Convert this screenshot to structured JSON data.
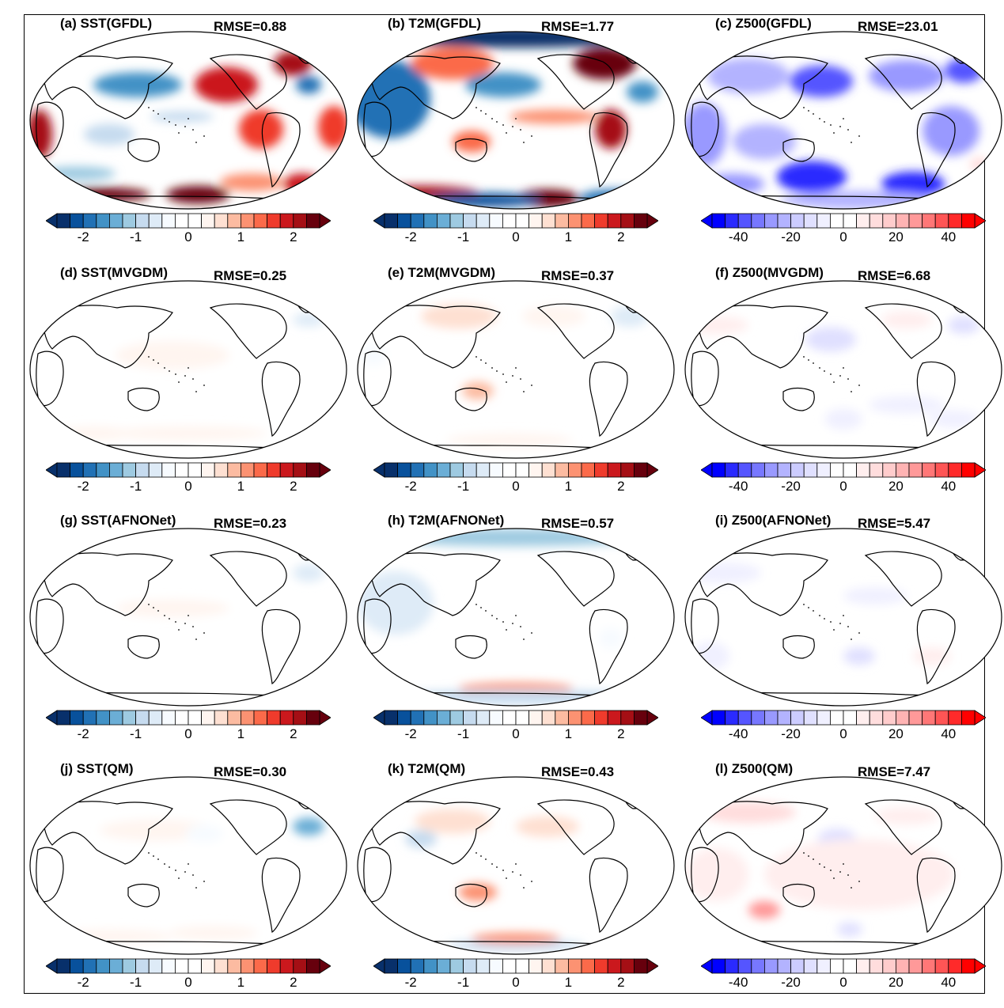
{
  "panels": [
    {
      "id": "a",
      "title": "(a) SST(GFDL)",
      "rmse": "RMSE=0.88",
      "variable": "SST",
      "scale": "div"
    },
    {
      "id": "b",
      "title": "(b) T2M(GFDL)",
      "rmse": "RMSE=1.77",
      "variable": "T2M",
      "scale": "div"
    },
    {
      "id": "c",
      "title": "(c) Z500(GFDL)",
      "rmse": "RMSE=23.01",
      "variable": "Z500",
      "scale": "bwr"
    },
    {
      "id": "d",
      "title": "(d) SST(MVGDM)",
      "rmse": "RMSE=0.25",
      "variable": "SST",
      "scale": "div"
    },
    {
      "id": "e",
      "title": "(e) T2M(MVGDM)",
      "rmse": "RMSE=0.37",
      "variable": "T2M",
      "scale": "div"
    },
    {
      "id": "f",
      "title": "(f) Z500(MVGDM)",
      "rmse": "RMSE=6.68",
      "variable": "Z500",
      "scale": "bwr"
    },
    {
      "id": "g",
      "title": "(g) SST(AFNONet)",
      "rmse": "RMSE=0.23",
      "variable": "SST",
      "scale": "div"
    },
    {
      "id": "h",
      "title": "(h) T2M(AFNONet)",
      "rmse": "RMSE=0.57",
      "variable": "T2M",
      "scale": "div"
    },
    {
      "id": "i",
      "title": "(i) Z500(AFNONet)",
      "rmse": "RMSE=5.47",
      "variable": "Z500",
      "scale": "bwr"
    },
    {
      "id": "j",
      "title": "(j) SST(QM)",
      "rmse": "RMSE=0.30",
      "variable": "SST",
      "scale": "div"
    },
    {
      "id": "k",
      "title": "(k) T2M(QM)",
      "rmse": "RMSE=0.43",
      "variable": "T2M",
      "scale": "div"
    },
    {
      "id": "l",
      "title": "(l) Z500(QM)",
      "rmse": "RMSE=7.47",
      "variable": "Z500",
      "scale": "bwr"
    }
  ],
  "colorbars": {
    "div": {
      "ticks": [
        "-2",
        "-1",
        "0",
        "1",
        "2"
      ],
      "colors": [
        "#08306b",
        "#08519c",
        "#2171b5",
        "#4292c6",
        "#6baed6",
        "#9ecae1",
        "#c6dbef",
        "#deebf7",
        "#f7fbff",
        "#ffffff",
        "#ffffff",
        "#fff5f0",
        "#fee0d2",
        "#fcbba1",
        "#fc9272",
        "#fb6a4a",
        "#ef3b2c",
        "#cb181d",
        "#a50f15",
        "#67000d"
      ]
    },
    "bwr": {
      "ticks": [
        "-40",
        "-20",
        "0",
        "20",
        "40"
      ],
      "colors": [
        "#0000ff",
        "#2a2aff",
        "#5555ff",
        "#7777ff",
        "#9999ff",
        "#b3b3ff",
        "#ccccff",
        "#e0e0ff",
        "#f0f0ff",
        "#ffffff",
        "#ffffff",
        "#ffeeee",
        "#ffdddd",
        "#ffcccc",
        "#ffb3b3",
        "#ff9999",
        "#ff7777",
        "#ff5555",
        "#ff2a2a",
        "#ff0000"
      ]
    }
  },
  "anomalies": {
    "a": [
      {
        "lon": 0.34,
        "lat": 0.3,
        "val": -1.6,
        "w": 0.14,
        "h": 0.07
      },
      {
        "lon": 0.62,
        "lat": 0.3,
        "val": 1.8,
        "w": 0.1,
        "h": 0.1
      },
      {
        "lon": 0.83,
        "lat": 0.18,
        "val": 2.2,
        "w": 0.06,
        "h": 0.07
      },
      {
        "lon": 0.88,
        "lat": 0.3,
        "val": -2.0,
        "w": 0.04,
        "h": 0.05
      },
      {
        "lon": 0.03,
        "lat": 0.58,
        "val": 2.2,
        "w": 0.04,
        "h": 0.14
      },
      {
        "lon": 0.73,
        "lat": 0.55,
        "val": 1.6,
        "w": 0.07,
        "h": 0.11
      },
      {
        "lon": 0.96,
        "lat": 0.54,
        "val": 1.6,
        "w": 0.05,
        "h": 0.12
      },
      {
        "lon": 0.15,
        "lat": 0.8,
        "val": -1.2,
        "w": 0.12,
        "h": 0.04
      },
      {
        "lon": 0.22,
        "lat": 0.92,
        "val": 2.3,
        "w": 0.16,
        "h": 0.04
      },
      {
        "lon": 0.53,
        "lat": 0.92,
        "val": 2.5,
        "w": 0.1,
        "h": 0.05
      },
      {
        "lon": 0.7,
        "lat": 0.85,
        "val": 1.2,
        "w": 0.1,
        "h": 0.05
      },
      {
        "lon": 0.86,
        "lat": 0.86,
        "val": 1.8,
        "w": 0.06,
        "h": 0.06
      },
      {
        "lon": 0.25,
        "lat": 0.58,
        "val": -1.0,
        "w": 0.08,
        "h": 0.06
      },
      {
        "lon": 0.48,
        "lat": 0.48,
        "val": -0.9,
        "w": 0.1,
        "h": 0.03
      }
    ],
    "b": [
      {
        "lon": 0.5,
        "lat": 0.03,
        "val": -2.6,
        "w": 0.42,
        "h": 0.06
      },
      {
        "lon": 0.1,
        "lat": 0.38,
        "val": -1.8,
        "w": 0.13,
        "h": 0.22
      },
      {
        "lon": 0.3,
        "lat": 0.18,
        "val": 1.4,
        "w": 0.13,
        "h": 0.09
      },
      {
        "lon": 0.46,
        "lat": 0.3,
        "val": -1.6,
        "w": 0.12,
        "h": 0.07
      },
      {
        "lon": 0.78,
        "lat": 0.18,
        "val": 2.5,
        "w": 0.1,
        "h": 0.09
      },
      {
        "lon": 0.9,
        "lat": 0.34,
        "val": -1.6,
        "w": 0.05,
        "h": 0.06
      },
      {
        "lon": 0.36,
        "lat": 0.62,
        "val": 1.4,
        "w": 0.06,
        "h": 0.06
      },
      {
        "lon": 0.8,
        "lat": 0.55,
        "val": 2.0,
        "w": 0.05,
        "h": 0.11
      },
      {
        "lon": 0.2,
        "lat": 0.91,
        "val": 2.2,
        "w": 0.18,
        "h": 0.04
      },
      {
        "lon": 0.6,
        "lat": 0.94,
        "val": 2.6,
        "w": 0.1,
        "h": 0.05
      },
      {
        "lon": 0.4,
        "lat": 0.95,
        "val": -2.2,
        "w": 0.18,
        "h": 0.04
      },
      {
        "lon": 0.82,
        "lat": 0.94,
        "val": -2.0,
        "w": 0.12,
        "h": 0.05
      },
      {
        "lon": 0.62,
        "lat": 0.48,
        "val": 1.0,
        "w": 0.14,
        "h": 0.04
      }
    ],
    "c": [
      {
        "lon": 0.2,
        "lat": 0.25,
        "val": -25,
        "w": 0.13,
        "h": 0.1
      },
      {
        "lon": 0.43,
        "lat": 0.28,
        "val": -38,
        "w": 0.1,
        "h": 0.09
      },
      {
        "lon": 0.7,
        "lat": 0.25,
        "val": -30,
        "w": 0.12,
        "h": 0.09
      },
      {
        "lon": 0.88,
        "lat": 0.22,
        "val": -40,
        "w": 0.06,
        "h": 0.07
      },
      {
        "lon": 0.06,
        "lat": 0.58,
        "val": -30,
        "w": 0.07,
        "h": 0.18
      },
      {
        "lon": 0.25,
        "lat": 0.62,
        "val": -22,
        "w": 0.1,
        "h": 0.1
      },
      {
        "lon": 0.84,
        "lat": 0.56,
        "val": -28,
        "w": 0.09,
        "h": 0.14
      },
      {
        "lon": 0.4,
        "lat": 0.82,
        "val": -45,
        "w": 0.11,
        "h": 0.09
      },
      {
        "lon": 0.72,
        "lat": 0.86,
        "val": -42,
        "w": 0.1,
        "h": 0.07
      },
      {
        "lon": 0.15,
        "lat": 0.86,
        "val": -28,
        "w": 0.1,
        "h": 0.06
      },
      {
        "lon": 0.55,
        "lat": 0.95,
        "val": -25,
        "w": 0.25,
        "h": 0.05
      },
      {
        "lon": 0.93,
        "lat": 0.75,
        "val": 10,
        "w": 0.03,
        "h": 0.04
      }
    ],
    "d": [
      {
        "lon": 0.45,
        "lat": 0.42,
        "val": 0.4,
        "w": 0.18,
        "h": 0.08
      },
      {
        "lon": 0.88,
        "lat": 0.22,
        "val": -0.6,
        "w": 0.05,
        "h": 0.04
      },
      {
        "lon": 0.5,
        "lat": 0.86,
        "val": 0.35,
        "w": 0.25,
        "h": 0.04
      },
      {
        "lon": 0.2,
        "lat": 0.86,
        "val": 0.3,
        "w": 0.12,
        "h": 0.04
      }
    ],
    "e": [
      {
        "lon": 0.32,
        "lat": 0.2,
        "val": 0.6,
        "w": 0.12,
        "h": 0.07
      },
      {
        "lon": 0.62,
        "lat": 0.2,
        "val": 0.4,
        "w": 0.1,
        "h": 0.06
      },
      {
        "lon": 0.86,
        "lat": 0.2,
        "val": -0.7,
        "w": 0.06,
        "h": 0.06
      },
      {
        "lon": 0.38,
        "lat": 0.62,
        "val": 0.8,
        "w": 0.05,
        "h": 0.05
      },
      {
        "lon": 0.48,
        "lat": 0.9,
        "val": 0.4,
        "w": 0.2,
        "h": 0.04
      },
      {
        "lon": 0.05,
        "lat": 0.42,
        "val": -0.3,
        "w": 0.04,
        "h": 0.06
      }
    ],
    "f": [
      {
        "lon": 0.46,
        "lat": 0.33,
        "val": -12,
        "w": 0.08,
        "h": 0.07
      },
      {
        "lon": 0.7,
        "lat": 0.22,
        "val": 6,
        "w": 0.08,
        "h": 0.05
      },
      {
        "lon": 0.88,
        "lat": 0.25,
        "val": -14,
        "w": 0.05,
        "h": 0.05
      },
      {
        "lon": 0.1,
        "lat": 0.25,
        "val": 5,
        "w": 0.1,
        "h": 0.05
      },
      {
        "lon": 0.5,
        "lat": 0.78,
        "val": -10,
        "w": 0.06,
        "h": 0.06
      },
      {
        "lon": 0.7,
        "lat": 0.7,
        "val": -6,
        "w": 0.12,
        "h": 0.05
      },
      {
        "lon": 0.85,
        "lat": 0.78,
        "val": -8,
        "w": 0.08,
        "h": 0.05
      }
    ],
    "g": [
      {
        "lon": 0.88,
        "lat": 0.25,
        "val": -0.7,
        "w": 0.05,
        "h": 0.05
      },
      {
        "lon": 0.45,
        "lat": 0.45,
        "val": 0.25,
        "w": 0.18,
        "h": 0.05
      },
      {
        "lon": 0.55,
        "lat": 0.75,
        "val": -0.2,
        "w": 0.18,
        "h": 0.05
      }
    ],
    "h": [
      {
        "lon": 0.5,
        "lat": 0.05,
        "val": -1.2,
        "w": 0.42,
        "h": 0.05
      },
      {
        "lon": 0.12,
        "lat": 0.42,
        "val": -0.6,
        "w": 0.12,
        "h": 0.18
      },
      {
        "lon": 0.5,
        "lat": 0.9,
        "val": 1.0,
        "w": 0.18,
        "h": 0.03
      },
      {
        "lon": 0.5,
        "lat": 0.95,
        "val": -1.0,
        "w": 0.42,
        "h": 0.04
      },
      {
        "lon": 0.8,
        "lat": 0.62,
        "val": -0.5,
        "w": 0.04,
        "h": 0.06
      }
    ],
    "i": [
      {
        "lon": 0.12,
        "lat": 0.25,
        "val": -7,
        "w": 0.12,
        "h": 0.06
      },
      {
        "lon": 0.6,
        "lat": 0.38,
        "val": -8,
        "w": 0.1,
        "h": 0.05
      },
      {
        "lon": 0.08,
        "lat": 0.72,
        "val": -9,
        "w": 0.06,
        "h": 0.08
      },
      {
        "lon": 0.55,
        "lat": 0.72,
        "val": -12,
        "w": 0.05,
        "h": 0.05
      },
      {
        "lon": 0.78,
        "lat": 0.72,
        "val": 5,
        "w": 0.06,
        "h": 0.05
      }
    ],
    "j": [
      {
        "lon": 0.88,
        "lat": 0.28,
        "val": -1.3,
        "w": 0.05,
        "h": 0.05
      },
      {
        "lon": 0.4,
        "lat": 0.3,
        "val": 0.25,
        "w": 0.18,
        "h": 0.06
      },
      {
        "lon": 0.25,
        "lat": 0.9,
        "val": 0.4,
        "w": 0.2,
        "h": 0.04
      },
      {
        "lon": 0.58,
        "lat": 0.88,
        "val": 0.35,
        "w": 0.14,
        "h": 0.04
      },
      {
        "lon": 0.55,
        "lat": 0.32,
        "val": -0.4,
        "w": 0.06,
        "h": 0.05
      }
    ],
    "k": [
      {
        "lon": 0.3,
        "lat": 0.25,
        "val": 0.7,
        "w": 0.12,
        "h": 0.07
      },
      {
        "lon": 0.6,
        "lat": 0.28,
        "val": 0.5,
        "w": 0.1,
        "h": 0.06
      },
      {
        "lon": 0.2,
        "lat": 0.35,
        "val": -0.8,
        "w": 0.05,
        "h": 0.05
      },
      {
        "lon": 0.38,
        "lat": 0.65,
        "val": 1.0,
        "w": 0.06,
        "h": 0.05
      },
      {
        "lon": 0.5,
        "lat": 0.95,
        "val": -1.0,
        "w": 0.22,
        "h": 0.03
      },
      {
        "lon": 0.5,
        "lat": 0.91,
        "val": 1.0,
        "w": 0.14,
        "h": 0.03
      }
    ],
    "l": [
      {
        "lon": 0.2,
        "lat": 0.2,
        "val": 10,
        "w": 0.15,
        "h": 0.06
      },
      {
        "lon": 0.48,
        "lat": 0.35,
        "val": -12,
        "w": 0.06,
        "h": 0.06
      },
      {
        "lon": 0.7,
        "lat": 0.22,
        "val": 9,
        "w": 0.1,
        "h": 0.05
      },
      {
        "lon": 0.25,
        "lat": 0.75,
        "val": 25,
        "w": 0.05,
        "h": 0.05
      },
      {
        "lon": 0.52,
        "lat": 0.86,
        "val": -15,
        "w": 0.04,
        "h": 0.04
      },
      {
        "lon": 0.55,
        "lat": 0.55,
        "val": 6,
        "w": 0.3,
        "h": 0.2
      },
      {
        "lon": 0.1,
        "lat": 0.55,
        "val": 5,
        "w": 0.1,
        "h": 0.15
      }
    ]
  }
}
